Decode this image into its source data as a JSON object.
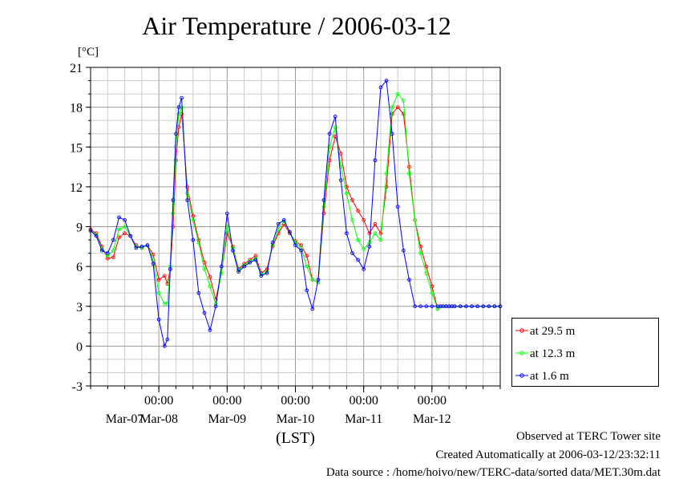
{
  "title": "Air Temperature / 2006-03-12",
  "footer": {
    "line1": "Observed at TERC Tower site",
    "line2": "Created Automatically at 2006-03-12/23:32:11",
    "line3": "Data source : /home/hoivo/new/TERC-data/sorted  data/MET.30m.dat"
  },
  "chart_data": {
    "type": "line",
    "title": "Air Temperature / 2006-03-12",
    "ylabel": "[°C]",
    "xlabel": "(LST)",
    "ylim": [
      -3,
      21
    ],
    "yticks": [
      -3,
      0,
      3,
      6,
      9,
      12,
      15,
      18,
      21
    ],
    "xlim_hours": [
      0,
      144
    ],
    "xticks": [
      {
        "hour": 24,
        "time": "00:00",
        "date": "Mar-08"
      },
      {
        "hour": 48,
        "time": "00:00",
        "date": "Mar-09"
      },
      {
        "hour": 72,
        "time": "00:00",
        "date": "Mar-10"
      },
      {
        "hour": 96,
        "time": "00:00",
        "date": "Mar-11"
      },
      {
        "hour": 120,
        "time": "00:00",
        "date": "Mar-12"
      }
    ],
    "first_date_label": "Mar-07",
    "grid": true,
    "legend_position": "bottom-right outside",
    "series": [
      {
        "name": "at 29.5 m",
        "color": "#ff0000",
        "x": [
          0,
          2,
          4,
          6,
          8,
          10,
          12,
          14,
          16,
          18,
          20,
          22,
          24,
          26,
          27,
          28,
          29,
          30,
          31,
          32,
          34,
          36,
          38,
          40,
          42,
          44,
          46,
          48,
          50,
          52,
          54,
          56,
          58,
          60,
          62,
          64,
          66,
          68,
          70,
          72,
          74,
          76,
          78,
          80,
          82,
          84,
          86,
          88,
          90,
          92,
          94,
          96,
          98,
          100,
          102,
          104,
          106,
          108,
          110,
          112,
          114,
          116,
          118,
          120,
          122,
          123,
          124,
          125,
          126,
          127,
          128,
          130,
          132,
          134,
          136,
          138,
          140,
          142,
          144
        ],
        "y": [
          8.8,
          8.5,
          7.5,
          6.6,
          6.7,
          8.2,
          8.5,
          8.3,
          7.6,
          7.4,
          7.6,
          6.9,
          5.0,
          5.3,
          4.7,
          5.8,
          9.0,
          14.0,
          16.5,
          17.5,
          12.0,
          9.8,
          8.0,
          6.3,
          5.2,
          3.5,
          5.5,
          8.5,
          7.5,
          5.8,
          6.2,
          6.5,
          6.8,
          5.5,
          5.8,
          7.5,
          8.5,
          9.2,
          8.5,
          7.9,
          7.6,
          6.8,
          5.0,
          4.8,
          10.0,
          14.0,
          15.8,
          14.5,
          12.0,
          11.0,
          10.2,
          9.5,
          8.5,
          9.2,
          8.5,
          12.0,
          17.5,
          18.0,
          17.5,
          13.5,
          9.5,
          7.5,
          6.0,
          4.5,
          2.8,
          3.0,
          3.0,
          3.0,
          3.0,
          3.0,
          3.0,
          3.0,
          3.0,
          3.0,
          3.0,
          3.0,
          3.0,
          3.0,
          3.0
        ]
      },
      {
        "name": "at 12.3 m",
        "color": "#00ff00",
        "x": [
          0,
          2,
          4,
          6,
          8,
          10,
          12,
          14,
          16,
          18,
          20,
          22,
          24,
          26,
          27,
          28,
          29,
          30,
          31,
          32,
          34,
          36,
          38,
          40,
          42,
          44,
          46,
          48,
          50,
          52,
          54,
          56,
          58,
          60,
          62,
          64,
          66,
          68,
          70,
          72,
          74,
          76,
          78,
          80,
          82,
          84,
          86,
          88,
          90,
          92,
          94,
          96,
          98,
          100,
          102,
          104,
          106,
          108,
          110,
          112,
          114,
          116,
          118,
          120,
          122,
          123,
          124,
          125,
          126,
          127,
          128,
          130,
          132,
          134,
          136,
          138,
          140,
          142,
          144
        ],
        "y": [
          8.7,
          8.4,
          7.3,
          6.8,
          7.2,
          8.8,
          9.0,
          8.3,
          7.5,
          7.4,
          7.6,
          6.5,
          4.0,
          3.2,
          3.2,
          6.0,
          10.0,
          15.0,
          17.5,
          18.0,
          11.5,
          9.5,
          7.8,
          5.8,
          4.5,
          3.2,
          5.5,
          9.0,
          7.4,
          5.7,
          6.1,
          6.4,
          6.6,
          5.4,
          5.6,
          7.6,
          8.8,
          9.4,
          8.6,
          7.8,
          7.4,
          6.0,
          5.0,
          4.8,
          10.5,
          15.0,
          16.5,
          13.5,
          11.5,
          9.5,
          8.0,
          7.3,
          7.8,
          8.5,
          8.0,
          13.0,
          18.0,
          19.0,
          18.5,
          13.0,
          9.5,
          7.0,
          5.5,
          4.0,
          2.8,
          3.0,
          3.0,
          3.0,
          3.0,
          3.0,
          3.0,
          3.0,
          3.0,
          3.0,
          3.0,
          3.0,
          3.0,
          3.0,
          3.0
        ]
      },
      {
        "name": "at 1.6 m",
        "color": "#0000ff",
        "x": [
          0,
          2,
          4,
          6,
          8,
          10,
          12,
          14,
          16,
          18,
          20,
          22,
          24,
          26,
          27,
          28,
          29,
          30,
          31,
          32,
          34,
          36,
          38,
          40,
          42,
          44,
          46,
          48,
          50,
          52,
          54,
          56,
          58,
          60,
          62,
          64,
          66,
          68,
          70,
          72,
          74,
          76,
          78,
          80,
          82,
          84,
          86,
          88,
          90,
          92,
          94,
          96,
          98,
          100,
          102,
          104,
          106,
          108,
          110,
          112,
          114,
          116,
          118,
          120,
          122,
          123,
          124,
          125,
          126,
          127,
          128,
          130,
          132,
          134,
          136,
          138,
          140,
          142,
          144
        ],
        "y": [
          8.7,
          8.3,
          7.2,
          7.0,
          8.0,
          9.7,
          9.5,
          8.3,
          7.4,
          7.5,
          7.6,
          6.2,
          2.0,
          0.0,
          0.5,
          5.8,
          11.0,
          16.0,
          18.0,
          18.7,
          11.0,
          8.0,
          4.0,
          2.5,
          1.2,
          3.0,
          6.0,
          10.0,
          7.2,
          5.6,
          6.0,
          6.3,
          6.5,
          5.3,
          5.5,
          7.8,
          9.2,
          9.5,
          8.6,
          7.6,
          7.2,
          4.2,
          2.8,
          5.0,
          11.0,
          16.0,
          17.3,
          12.5,
          8.5,
          7.0,
          6.5,
          5.8,
          7.5,
          14.0,
          19.5,
          20.0,
          16.0,
          10.5,
          7.2,
          5.0,
          3.0,
          3.0,
          3.0,
          3.0,
          3.0,
          3.0,
          3.0,
          3.0,
          3.0,
          3.0,
          3.0,
          3.0,
          3.0,
          3.0,
          3.0,
          3.0,
          3.0,
          3.0,
          3.0
        ]
      }
    ]
  }
}
